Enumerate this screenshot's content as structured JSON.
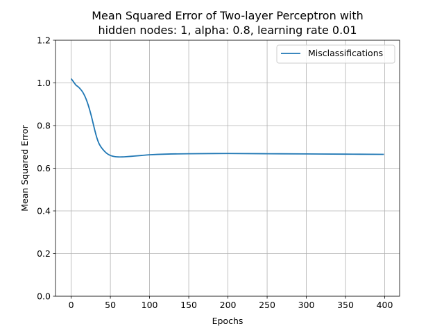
{
  "chart_data": {
    "type": "line",
    "title_lines": [
      "Mean Squared Error of Two-layer Perceptron with",
      "hidden nodes: 1, alpha: 0.8, learning rate 0.01"
    ],
    "xlabel": "Epochs",
    "ylabel": "Mean Squared Error",
    "xlim": [
      -20,
      419
    ],
    "ylim": [
      0.0,
      1.2
    ],
    "xticks": [
      0,
      50,
      100,
      150,
      200,
      250,
      300,
      350,
      400
    ],
    "xtick_labels": [
      "0",
      "50",
      "100",
      "150",
      "200",
      "250",
      "300",
      "350",
      "400"
    ],
    "yticks": [
      0.0,
      0.2,
      0.4,
      0.6,
      0.8,
      1.0,
      1.2
    ],
    "ytick_labels": [
      "0.0",
      "0.2",
      "0.4",
      "0.6",
      "0.8",
      "1.0",
      "1.2"
    ],
    "grid": true,
    "legend": {
      "position": "top-right",
      "entries": [
        "Misclassifications"
      ]
    },
    "series": [
      {
        "name": "Misclassifications",
        "color": "#1f77b4",
        "x": [
          0,
          3,
          6,
          10,
          15,
          20,
          25,
          30,
          33,
          36,
          40,
          45,
          50,
          55,
          60,
          65,
          70,
          80,
          90,
          100,
          120,
          150,
          200,
          250,
          300,
          350,
          399
        ],
        "y": [
          1.02,
          1.005,
          0.99,
          0.978,
          0.955,
          0.915,
          0.855,
          0.78,
          0.74,
          0.712,
          0.69,
          0.671,
          0.66,
          0.655,
          0.653,
          0.653,
          0.654,
          0.657,
          0.66,
          0.663,
          0.666,
          0.668,
          0.669,
          0.668,
          0.667,
          0.666,
          0.665
        ]
      }
    ]
  }
}
